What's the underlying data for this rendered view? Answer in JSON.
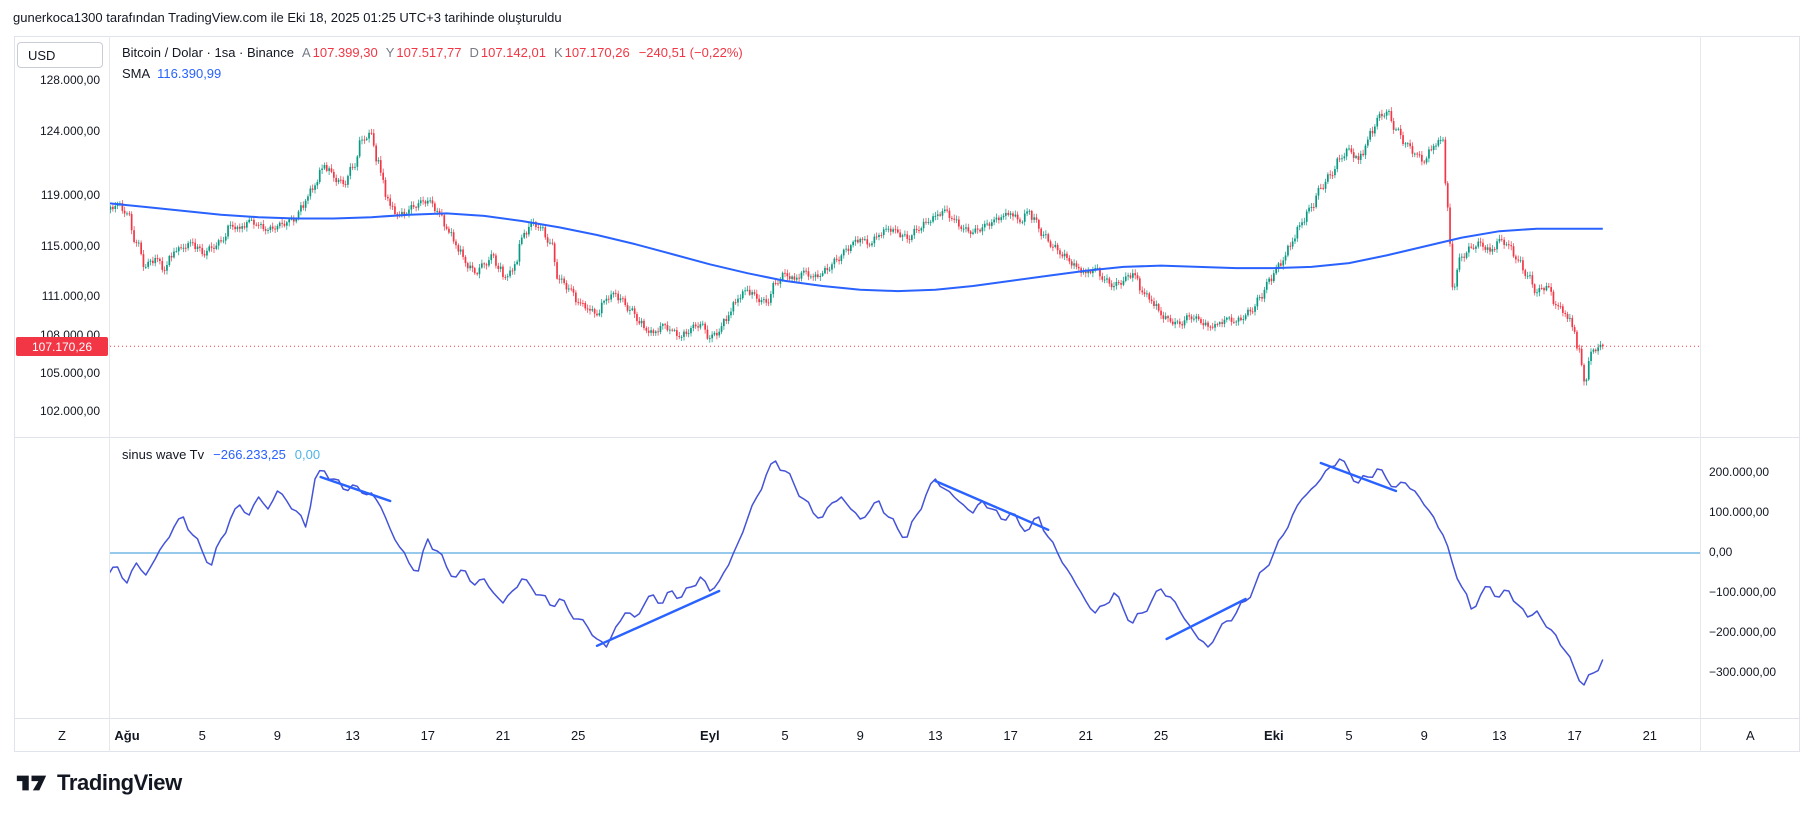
{
  "attribution": "gunerkoca1300 tarafından TradingView.com ile Eki 18, 2025 01:25 UTC+3 tarihinde oluşturuldu",
  "currency_button": "USD",
  "corner_labels": {
    "left": "Z",
    "right": "A"
  },
  "footer": {
    "brand": "TradingView"
  },
  "legend": {
    "title": "Bitcoin / Dolar · 1sa · Binance",
    "ohlc": [
      {
        "label": "A",
        "value": "107.399,30"
      },
      {
        "label": "Y",
        "value": "107.517,77"
      },
      {
        "label": "D",
        "value": "107.142,01"
      },
      {
        "label": "K",
        "value": "107.170,26"
      }
    ],
    "change": "−240,51 (−0,22%)",
    "sma_label": "SMA",
    "sma_value": "116.390,99"
  },
  "indicator_legend": {
    "title": "sinus wave Tv",
    "value": "−266.233,25",
    "value2": "0,00"
  },
  "price_tag": "107.170,26",
  "colors": {
    "up": "#089981",
    "down": "#F23645",
    "sma": "#2962FF",
    "wave": "#4453D8",
    "trend": "#2962FF",
    "zero": "#73B9E7",
    "tag": "#F23645",
    "text": "#131722",
    "muted": "#787B86",
    "border": "#E0E3EB"
  },
  "time_axis": {
    "ticks": [
      {
        "label": "Ağu",
        "d": 0,
        "bold": true
      },
      {
        "label": "5",
        "d": 4
      },
      {
        "label": "9",
        "d": 8
      },
      {
        "label": "13",
        "d": 12
      },
      {
        "label": "17",
        "d": 16
      },
      {
        "label": "21",
        "d": 20
      },
      {
        "label": "25",
        "d": 24
      },
      {
        "label": "Eyl",
        "d": 31,
        "bold": true
      },
      {
        "label": "5",
        "d": 35
      },
      {
        "label": "9",
        "d": 39
      },
      {
        "label": "13",
        "d": 43
      },
      {
        "label": "17",
        "d": 47
      },
      {
        "label": "21",
        "d": 51
      },
      {
        "label": "25",
        "d": 55
      },
      {
        "label": "Eki",
        "d": 61,
        "bold": true
      },
      {
        "label": "5",
        "d": 65
      },
      {
        "label": "9",
        "d": 69
      },
      {
        "label": "13",
        "d": 73
      },
      {
        "label": "17",
        "d": 77
      },
      {
        "label": "21",
        "d": 81
      }
    ]
  },
  "chart_data": [
    {
      "type": "candlestick",
      "title": "Bitcoin / Dolar · 1sa · Binance",
      "x_unit": "days_from_aug_1",
      "x_start": -1,
      "x_step": 0.5,
      "ylim": [
        101500,
        129500
      ],
      "current_price": 107170.26,
      "closes": [
        117900,
        118400,
        117600,
        115300,
        113400,
        114100,
        113100,
        114600,
        114900,
        115300,
        114400,
        114900,
        115400,
        116700,
        116400,
        117100,
        116700,
        116300,
        116600,
        116900,
        117200,
        118600,
        119800,
        121400,
        120400,
        119900,
        121200,
        123400,
        123900,
        120800,
        118200,
        117400,
        117900,
        118400,
        118600,
        117800,
        116400,
        115100,
        113700,
        112900,
        113600,
        114300,
        112600,
        113100,
        115700,
        116900,
        116500,
        115300,
        112400,
        111700,
        110600,
        110100,
        109600,
        110900,
        111300,
        110400,
        109700,
        108600,
        108200,
        108900,
        108400,
        107900,
        108600,
        108900,
        107800,
        108300,
        109600,
        110900,
        111600,
        110900,
        110600,
        112100,
        112900,
        112400,
        113100,
        112600,
        112900,
        113600,
        114300,
        115100,
        115600,
        115100,
        115900,
        116400,
        116100,
        115600,
        116300,
        116900,
        117400,
        117900,
        117100,
        116400,
        116100,
        116500,
        116900,
        117300,
        117600,
        116900,
        117800,
        116400,
        115400,
        114700,
        114100,
        113400,
        112900,
        113300,
        112400,
        111900,
        112300,
        112900,
        111400,
        110700,
        109600,
        109100,
        108900,
        109500,
        109300,
        108700,
        108900,
        109400,
        109100,
        109600,
        110300,
        111600,
        112900,
        113900,
        115400,
        116900,
        118100,
        119600,
        120600,
        121900,
        122700,
        121800,
        123400,
        125100,
        125600,
        124200,
        123100,
        122300,
        121600,
        122900,
        123400,
        111800,
        114200,
        114900,
        115300,
        114600,
        115600,
        115100,
        113900,
        112700,
        111400,
        111900,
        110400,
        109700,
        108300,
        104400,
        106900,
        107170.26
      ],
      "sma": {
        "name": "SMA",
        "value": 116390.99,
        "points": [
          [
            -1,
            118400
          ],
          [
            1,
            118100
          ],
          [
            3,
            117800
          ],
          [
            5,
            117500
          ],
          [
            7,
            117300
          ],
          [
            9,
            117200
          ],
          [
            11,
            117200
          ],
          [
            13,
            117300
          ],
          [
            15,
            117500
          ],
          [
            17,
            117600
          ],
          [
            19,
            117400
          ],
          [
            21,
            117000
          ],
          [
            23,
            116500
          ],
          [
            25,
            115900
          ],
          [
            27,
            115200
          ],
          [
            29,
            114400
          ],
          [
            31,
            113600
          ],
          [
            33,
            112900
          ],
          [
            35,
            112300
          ],
          [
            37,
            111900
          ],
          [
            39,
            111600
          ],
          [
            41,
            111500
          ],
          [
            43,
            111600
          ],
          [
            45,
            111900
          ],
          [
            47,
            112300
          ],
          [
            49,
            112700
          ],
          [
            51,
            113100
          ],
          [
            53,
            113400
          ],
          [
            55,
            113500
          ],
          [
            57,
            113400
          ],
          [
            59,
            113300
          ],
          [
            61,
            113300
          ],
          [
            63,
            113400
          ],
          [
            65,
            113700
          ],
          [
            67,
            114300
          ],
          [
            69,
            115000
          ],
          [
            71,
            115700
          ],
          [
            73,
            116200
          ],
          [
            75,
            116400
          ],
          [
            77,
            116400
          ],
          [
            78.5,
            116391
          ]
        ]
      },
      "y_axis": {
        "side": "left",
        "ticks": [
          {
            "label": "128.000,00",
            "value": 128000
          },
          {
            "label": "124.000,00",
            "value": 124000
          },
          {
            "label": "119.000,00",
            "value": 119000
          },
          {
            "label": "115.000,00",
            "value": 115000
          },
          {
            "label": "111.000,00",
            "value": 111000
          },
          {
            "label": "108.000,00",
            "value": 108000
          },
          {
            "label": "105.000,00",
            "value": 105000
          },
          {
            "label": "102.000,00",
            "value": 102000
          }
        ]
      }
    },
    {
      "type": "line",
      "title": "sinus wave Tv",
      "x_unit": "days_from_aug_1",
      "x_start": -1,
      "x_step": 0.5,
      "ylim": [
        -350000,
        280000
      ],
      "zero_line": 0,
      "last_value": -266233.25,
      "values": [
        -55000,
        -35000,
        -75000,
        -25000,
        -55000,
        -15000,
        25000,
        65000,
        90000,
        45000,
        5000,
        -30000,
        35000,
        85000,
        120000,
        95000,
        140000,
        110000,
        155000,
        130000,
        105000,
        65000,
        185000,
        205000,
        185000,
        160000,
        170000,
        150000,
        150000,
        115000,
        60000,
        15000,
        -25000,
        -45000,
        35000,
        5000,
        -35000,
        -60000,
        -45000,
        -80000,
        -65000,
        -100000,
        -125000,
        -95000,
        -65000,
        -85000,
        -105000,
        -130000,
        -115000,
        -145000,
        -165000,
        -185000,
        -215000,
        -235000,
        -185000,
        -150000,
        -160000,
        -130000,
        -105000,
        -125000,
        -95000,
        -110000,
        -85000,
        -60000,
        -95000,
        -70000,
        -30000,
        25000,
        85000,
        140000,
        195000,
        230000,
        205000,
        170000,
        135000,
        100000,
        90000,
        125000,
        140000,
        110000,
        85000,
        105000,
        130000,
        90000,
        60000,
        40000,
        95000,
        145000,
        185000,
        160000,
        140000,
        120000,
        100000,
        130000,
        110000,
        85000,
        100000,
        70000,
        60000,
        90000,
        40000,
        0,
        -40000,
        -80000,
        -120000,
        -150000,
        -130000,
        -100000,
        -140000,
        -175000,
        -150000,
        -120000,
        -90000,
        -110000,
        -145000,
        -180000,
        -215000,
        -235000,
        -200000,
        -170000,
        -150000,
        -120000,
        -80000,
        -40000,
        0,
        45000,
        95000,
        135000,
        160000,
        185000,
        215000,
        235000,
        205000,
        175000,
        190000,
        210000,
        185000,
        165000,
        175000,
        155000,
        120000,
        90000,
        45000,
        -25000,
        -85000,
        -140000,
        -105000,
        -85000,
        -110000,
        -95000,
        -130000,
        -160000,
        -145000,
        -185000,
        -205000,
        -245000,
        -290000,
        -330000,
        -300000,
        -266233.25
      ],
      "trendlines": [
        [
          10.3,
          190000,
          14.0,
          130000
        ],
        [
          25.0,
          -232000,
          31.5,
          -95000
        ],
        [
          43.0,
          180000,
          49.0,
          58000
        ],
        [
          55.3,
          -215000,
          59.5,
          -115000
        ],
        [
          63.5,
          225000,
          67.5,
          155000
        ]
      ],
      "y_axis": {
        "side": "right",
        "ticks": [
          {
            "label": "200.000,00",
            "value": 200000
          },
          {
            "label": "100.000,00",
            "value": 100000
          },
          {
            "label": "0,00",
            "value": 0
          },
          {
            "label": "−100.000,00",
            "value": -100000
          },
          {
            "label": "−200.000,00",
            "value": -200000
          },
          {
            "label": "−300.000,00",
            "value": -300000
          }
        ]
      }
    }
  ]
}
